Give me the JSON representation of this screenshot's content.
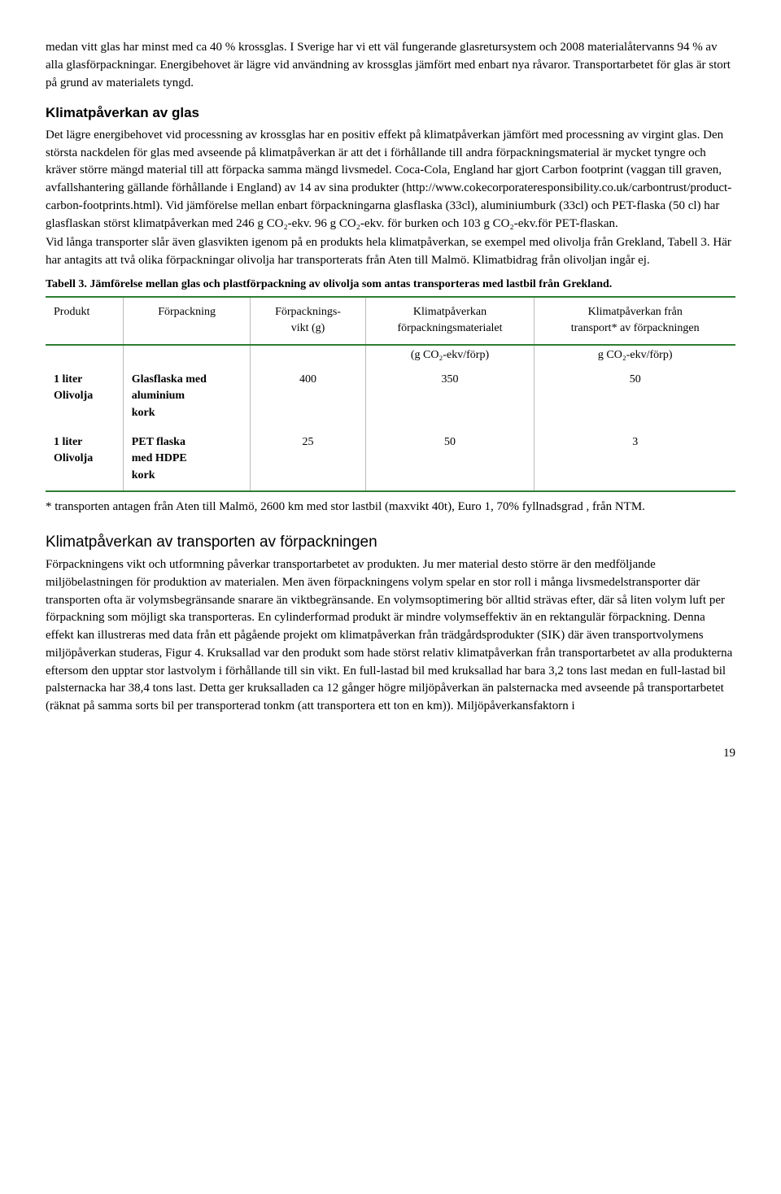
{
  "intro": {
    "p1": "medan vitt glas har minst med ca 40 % krossglas. I Sverige har vi ett väl fungerande glasretursystem och 2008 materialåtervanns 94 % av alla glasförpackningar. Energibehovet är lägre vid användning av krossglas jämfört med enbart nya råvaror. Transportarbetet för glas är stort på grund av materialets tyngd."
  },
  "section1": {
    "heading": "Klimatpåverkan av glas",
    "p1": "Det lägre energibehovet vid processning av krossglas har en positiv effekt på klimatpåverkan jämfört med processning av virgint glas. Den största nackdelen för glas med avseende på klimatpåverkan är att det i förhållande till andra förpackningsmaterial är mycket tyngre och kräver större mängd material till att förpacka samma mängd livsmedel. Coca-Cola, England har gjort Carbon footprint (vaggan till graven, avfallshantering gällande förhållande i England) av 14 av sina produkter (http://www.cokecorporateresponsibility.co.uk/carbontrust/product-carbon-footprints.html). Vid jämförelse mellan enbart förpackningarna glasflaska (33cl), aluminiumburk (33cl) och PET-flaska (50 cl) har glasflaskan störst klimatpåverkan med 246 g CO₂-ekv. 96 g CO₂-ekv. för burken och 103 g CO₂-ekv.för PET-flaskan.",
    "p2": "Vid långa transporter slår även glasvikten igenom på en produkts hela klimatpåverkan, se exempel med olivolja från Grekland, Tabell 3. Här har antagits att två olika förpackningar olivolja har transporterats från Aten till Malmö. Klimatbidrag från olivoljan ingår ej."
  },
  "table": {
    "caption": "Tabell 3. Jämförelse mellan glas och plastförpackning av olivolja som antas transporteras med lastbil från Grekland.",
    "columns": [
      "Produkt",
      "Förpackning",
      "Förpacknings-\nvikt (g)",
      "Klimatpåverkan\nförpackningsmaterialet",
      "Klimatpåverkan från\ntransport* av förpackningen"
    ],
    "subhead": [
      "",
      "",
      "",
      "(g CO₂-ekv/förp)",
      "g CO₂-ekv/förp)"
    ],
    "rows": [
      [
        "1 liter\nOlivolja",
        "Glasflaska med\naluminium\nkork",
        "400",
        "350",
        "50"
      ],
      [
        "1 liter\nOlivolja",
        "PET flaska\nmed HDPE\nkork",
        "25",
        "50",
        "3"
      ]
    ],
    "border_color": "#2e7d32",
    "footnote": "* transporten antagen från Aten till Malmö, 2600 km med stor lastbil (maxvikt 40t), Euro 1, 70% fyllnadsgrad , från NTM."
  },
  "section2": {
    "heading": "Klimatpåverkan av transporten av förpackningen",
    "p1": "Förpackningens vikt och utformning påverkar transportarbetet av produkten. Ju mer material desto större är den medföljande miljöbelastningen för produktion av materialen. Men även förpackningens volym spelar en stor roll i många livsmedelstransporter där transporten ofta är volymsbegränsande snarare än viktbegränsande. En volymsoptimering bör alltid strävas efter, där så liten volym luft per förpackning som möjligt ska transporteras. En cylinderformad produkt är mindre volymseffektiv än en rektangulär förpackning. Denna effekt kan illustreras med data från ett pågående projekt om klimatpåverkan från trädgårdsprodukter (SIK) där även transportvolymens miljöpåverkan studeras, Figur 4. Kruksallad var den produkt som hade störst relativ klimatpåverkan från transportarbetet av alla produkterna eftersom den upptar stor lastvolym i förhållande till sin vikt. En full-lastad bil med kruksallad har bara 3,2 tons last medan en full-lastad bil palsternacka har 38,4 tons last. Detta ger kruksalladen ca 12 gånger högre miljöpåverkan än palsternacka med avseende på transportarbetet (räknat på samma sorts bil per transporterad tonkm (att transportera ett ton en km)). Miljöpåverkansfaktorn i"
  },
  "page_number": "19"
}
